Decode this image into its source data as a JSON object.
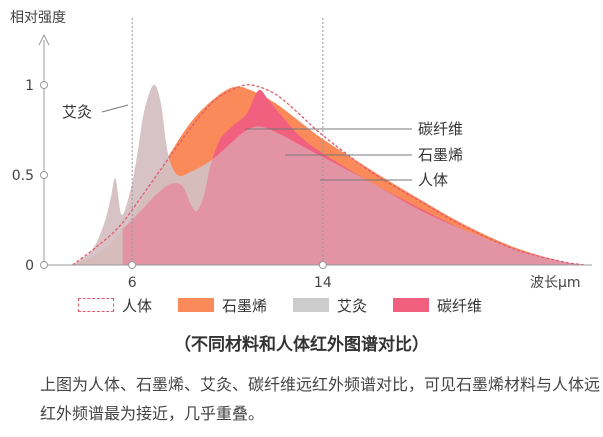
{
  "chart_data": {
    "type": "area",
    "ylabel": "相对强度",
    "xlabel": "波长μm",
    "x_ticks": [
      6,
      14
    ],
    "y_ticks": [
      "0",
      "0.5",
      "1"
    ],
    "y_tick_values": [
      0,
      0.5,
      1
    ],
    "xlim": [
      2.3,
      25
    ],
    "ylim": [
      0,
      1.3
    ],
    "series": [
      {
        "name": "艾灸",
        "color": "#cccccc",
        "points": [
          [
            3.5,
            0.0
          ],
          [
            4.3,
            0.08
          ],
          [
            4.8,
            0.22
          ],
          [
            5.1,
            0.37
          ],
          [
            5.3,
            0.48
          ],
          [
            5.55,
            0.28
          ],
          [
            5.9,
            0.4
          ],
          [
            6.2,
            0.6
          ],
          [
            6.5,
            0.85
          ],
          [
            6.9,
            1.0
          ],
          [
            7.2,
            0.9
          ],
          [
            7.5,
            0.62
          ],
          [
            7.9,
            0.5
          ],
          [
            8.5,
            0.52
          ],
          [
            9.3,
            0.58
          ],
          [
            10,
            0.66
          ],
          [
            10.7,
            0.74
          ],
          [
            11.3,
            0.77
          ],
          [
            12,
            0.74
          ],
          [
            13,
            0.67
          ],
          [
            14,
            0.6
          ],
          [
            16,
            0.46
          ],
          [
            18,
            0.31
          ],
          [
            20,
            0.19
          ],
          [
            22,
            0.09
          ],
          [
            24,
            0.02
          ],
          [
            25,
            0.0
          ]
        ]
      },
      {
        "name": "石墨烯",
        "color": "#fa8a5a",
        "points": [
          [
            3.5,
            0.0
          ],
          [
            4.5,
            0.06
          ],
          [
            5.5,
            0.18
          ],
          [
            6.5,
            0.38
          ],
          [
            7.5,
            0.6
          ],
          [
            8.5,
            0.8
          ],
          [
            9.5,
            0.93
          ],
          [
            10.3,
            0.99
          ],
          [
            11,
            0.97
          ],
          [
            12,
            0.9
          ],
          [
            13,
            0.8
          ],
          [
            14,
            0.7
          ],
          [
            16,
            0.53
          ],
          [
            18,
            0.37
          ],
          [
            20,
            0.22
          ],
          [
            22,
            0.1
          ],
          [
            24,
            0.02
          ],
          [
            25,
            0.0
          ]
        ]
      },
      {
        "name": "碳纤维",
        "color": "#f26080",
        "points": [
          [
            5.6,
            0.2
          ],
          [
            6,
            0.25
          ],
          [
            6.5,
            0.32
          ],
          [
            7,
            0.39
          ],
          [
            7.6,
            0.45
          ],
          [
            8.1,
            0.44
          ],
          [
            8.45,
            0.34
          ],
          [
            8.7,
            0.3
          ],
          [
            9,
            0.38
          ],
          [
            9.3,
            0.56
          ],
          [
            9.7,
            0.7
          ],
          [
            10.2,
            0.77
          ],
          [
            10.8,
            0.84
          ],
          [
            11.3,
            0.97
          ],
          [
            11.7,
            0.92
          ],
          [
            12.2,
            0.84
          ],
          [
            13,
            0.72
          ],
          [
            14,
            0.62
          ],
          [
            16,
            0.46
          ],
          [
            18,
            0.32
          ],
          [
            20,
            0.19
          ],
          [
            22,
            0.09
          ],
          [
            24,
            0.02
          ],
          [
            25,
            0.0
          ]
        ]
      },
      {
        "name": "人体",
        "color": "#e05a6a",
        "points": [
          [
            3.5,
            0.0
          ],
          [
            4.5,
            0.1
          ],
          [
            5.5,
            0.22
          ],
          [
            6.5,
            0.4
          ],
          [
            7.3,
            0.55
          ],
          [
            8,
            0.68
          ],
          [
            8.8,
            0.82
          ],
          [
            9.5,
            0.92
          ],
          [
            10.3,
            0.98
          ],
          [
            11,
            1.0
          ],
          [
            12,
            0.95
          ],
          [
            13,
            0.84
          ],
          [
            14,
            0.72
          ],
          [
            16,
            0.52
          ],
          [
            18,
            0.36
          ],
          [
            20,
            0.21
          ],
          [
            22,
            0.09
          ],
          [
            24,
            0.02
          ],
          [
            25,
            0.0
          ]
        ]
      }
    ],
    "overlay_fill": "#d8b8bd",
    "annotations": [
      {
        "text": "艾灸",
        "series": "艾灸"
      },
      {
        "text": "碳纤维",
        "series": "碳纤维"
      },
      {
        "text": "石墨烯",
        "series": "石墨烯"
      },
      {
        "text": "人体",
        "series": "人体"
      }
    ]
  },
  "legend": [
    {
      "label": "人体",
      "style": "dashed",
      "color": "#e05a6a"
    },
    {
      "label": "石墨烯",
      "style": "solid",
      "color": "#fa8a5a"
    },
    {
      "label": "艾灸",
      "style": "solid",
      "color": "#cccccc"
    },
    {
      "label": "碳纤维",
      "style": "solid",
      "color": "#f26080"
    }
  ],
  "caption": {
    "subtitle": "（不同材料和人体红外图谱对比）",
    "description": "上图为人体、石墨烯、艾灸、碳纤维远红外频谱对比，可见石墨烯材料与人体远红外频谱最为接近，几乎重叠。"
  }
}
